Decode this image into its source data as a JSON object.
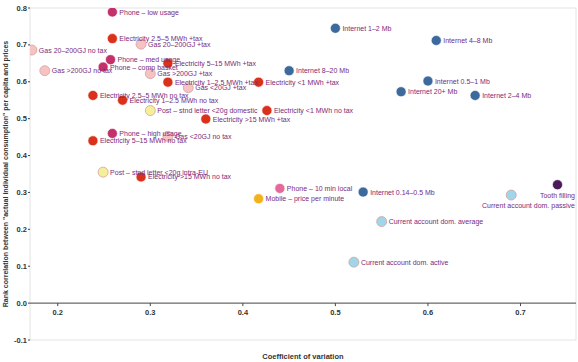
{
  "chart_data": {
    "type": "scatter",
    "x_label": "Coefficient of variation",
    "y_label": "Rank correlation between \"actual individual consumption\" per capita and prices",
    "xlim": [
      0.17,
      0.76
    ],
    "ylim": [
      -0.1,
      0.8
    ],
    "xticks": [
      0.2,
      0.3,
      0.4,
      0.5,
      0.6,
      0.7
    ],
    "yticks": [
      {
        "value": -0.1,
        "label": "-0.1"
      },
      {
        "value": 0,
        "label": "0.0"
      },
      0.1,
      0.2,
      0.3,
      0.4,
      0.5,
      0.6,
      0.7,
      0.8
    ],
    "grid": false,
    "marker": "circle",
    "labels": [
      "Phone – low usage",
      "Internet 1–2 Mb",
      "Internet 4–8 Mb",
      "Electricity 2.5–5 MWh +tax",
      "Gas 20–200GJ +tax",
      "Gas 20–200GJ no tax",
      "Phone – med usage",
      "Phone – comp basket",
      "Gas >200GJ no tax",
      "Electricity 5–15 MWh +tax",
      "Gas >200GJ +tax",
      "Internet 8–20 Mb",
      "Internet 0.5–1 Mb",
      "Electricity 1–2.5 MWh +tax",
      "Electricity <1 MWh +tax",
      "Gas <20GJ +tax",
      "Internet 20+ Mb",
      "Electricity 2.5–5 MWh no tax",
      "Internet 2–4 Mb",
      "Electricity 1–2.5 MWh no tax",
      "Post – stnd letter <20g domestic",
      "Electricity <1 MWh no tax",
      "Electricity >15 MWh +tax",
      "Phone – high usage",
      "Gas <20GJ no tax",
      "Electricity 5–15 MWh no tax",
      "Post – stnd letter <20g intra-EU",
      "Electricity >15 MWh no tax",
      "Tooth filling",
      "Phone – 10 min local",
      "Internet 0.14–0.5 Mb",
      "Current account dom. passive",
      "Mobile – price per minute",
      "Current account dom. average",
      "Current account dom. active"
    ],
    "x": [
      0.259,
      0.5,
      0.609,
      0.259,
      0.29,
      0.172,
      0.257,
      0.249,
      0.186,
      0.319,
      0.3,
      0.45,
      0.6,
      0.319,
      0.417,
      0.341,
      0.571,
      0.238,
      0.651,
      0.27,
      0.3,
      0.426,
      0.36,
      0.259,
      0.319,
      0.238,
      0.249,
      0.29,
      0.74,
      0.44,
      0.53,
      0.69,
      0.417,
      0.55,
      0.52
    ],
    "values": [
      0.789,
      0.745,
      0.712,
      0.717,
      0.702,
      0.686,
      0.66,
      0.64,
      0.63,
      0.65,
      0.622,
      0.63,
      0.602,
      0.599,
      0.599,
      0.584,
      0.573,
      0.563,
      0.563,
      0.55,
      0.522,
      0.522,
      0.499,
      0.46,
      0.452,
      0.44,
      0.355,
      0.342,
      0.321,
      0.311,
      0.301,
      0.293,
      0.283,
      0.221,
      0.111
    ],
    "colors": [
      "#c4306a",
      "#3c6a9c",
      "#3c6a9c",
      "#d9311b",
      "#f6c3c3",
      "#f6c3c3",
      "#c4306a",
      "#c4306a",
      "#f6c3c3",
      "#d9311b",
      "#f6c3c3",
      "#3c6a9c",
      "#3c6a9c",
      "#d9311b",
      "#d9311b",
      "#f6c3c3",
      "#3c6a9c",
      "#d9311b",
      "#3c6a9c",
      "#d9311b",
      "#f4f09a",
      "#d9311b",
      "#d9311b",
      "#c4306a",
      "#f6c3c3",
      "#d9311b",
      "#f4f09a",
      "#d9311b",
      "#4a1a5a",
      "#e36a9a",
      "#3c6a9c",
      "#9fd6ea",
      "#f2b21b",
      "#9fd6ea",
      "#9fd6ea"
    ]
  }
}
